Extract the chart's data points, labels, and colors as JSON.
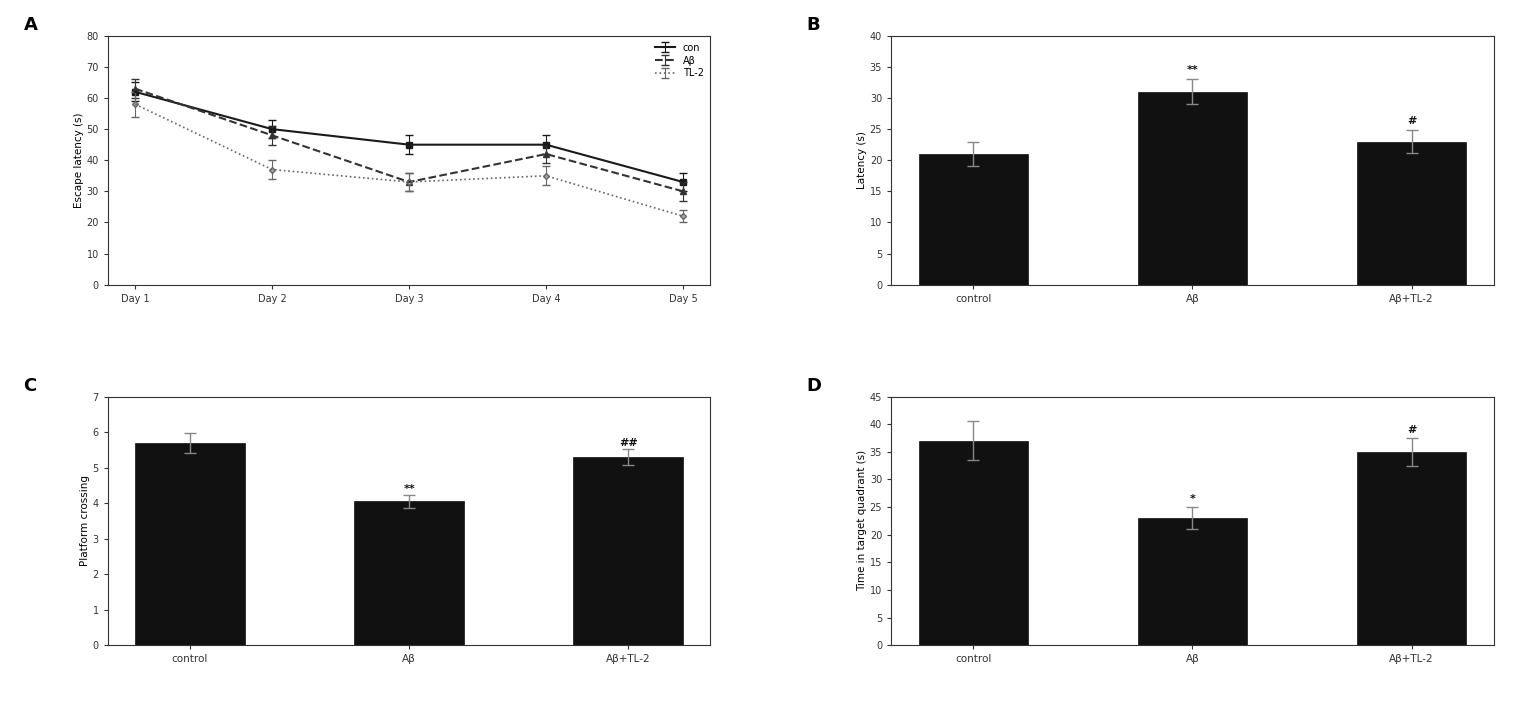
{
  "panel_A": {
    "days": [
      "Day 1",
      "Day 2",
      "Day 3",
      "Day 4",
      "Day 5"
    ],
    "con_mean": [
      62,
      50,
      45,
      45,
      33
    ],
    "con_err": [
      3,
      3,
      3,
      3,
      3
    ],
    "ab_mean": [
      63,
      48,
      33,
      42,
      30
    ],
    "ab_err": [
      3,
      3,
      3,
      3,
      3
    ],
    "tl2_mean": [
      58,
      37,
      33,
      35,
      22
    ],
    "tl2_err": [
      4,
      3,
      3,
      3,
      2
    ],
    "ylabel": "Escape latency (s)",
    "ylim": [
      0,
      80
    ],
    "yticks": [
      0,
      10,
      20,
      30,
      40,
      50,
      60,
      70,
      80
    ],
    "legend_labels": [
      "con",
      "Aβ",
      "TL-2"
    ]
  },
  "panel_B": {
    "categories": [
      "control",
      "Aβ",
      "Aβ+TL-2"
    ],
    "means": [
      21,
      31,
      23
    ],
    "errors": [
      2,
      2.0,
      1.8
    ],
    "ylabel": "Latency (s)",
    "ylim": [
      0,
      40
    ],
    "yticks": [
      0,
      5,
      10,
      15,
      20,
      25,
      30,
      35,
      40
    ],
    "annotations": [
      "",
      "**",
      "#"
    ]
  },
  "panel_C": {
    "categories": [
      "control",
      "Aβ",
      "Aβ+TL-2"
    ],
    "means": [
      5.7,
      4.05,
      5.3
    ],
    "errors": [
      0.28,
      0.18,
      0.22
    ],
    "ylabel": "Platform crossing",
    "ylim": [
      0,
      7
    ],
    "yticks": [
      0,
      1,
      2,
      3,
      4,
      5,
      6,
      7
    ],
    "annotations": [
      "",
      "**",
      "##"
    ]
  },
  "panel_D": {
    "categories": [
      "control",
      "Aβ",
      "Aβ+TL-2"
    ],
    "means": [
      37,
      23,
      35
    ],
    "errors": [
      3.5,
      2.0,
      2.5
    ],
    "ylabel": "Time in target quadrant (s)",
    "ylim": [
      0,
      45
    ],
    "yticks": [
      0,
      5,
      10,
      15,
      20,
      25,
      30,
      35,
      40,
      45
    ],
    "annotations": [
      "",
      "*",
      "#"
    ]
  },
  "bar_color": "#111111",
  "bg_color": "#ffffff",
  "err_color": "#555555",
  "spine_color": "#333333"
}
